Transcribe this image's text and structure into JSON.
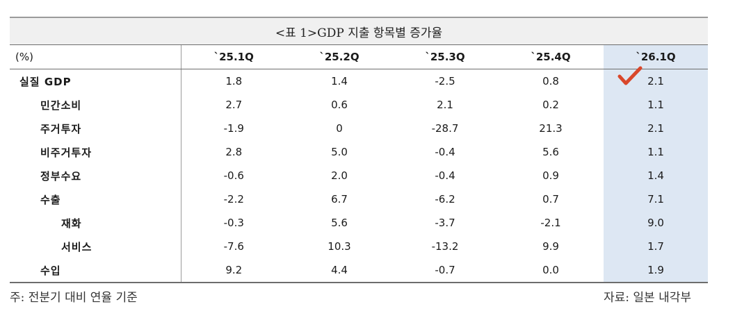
{
  "table": {
    "title": "<표 1>GDP 지출 항목별 증가율",
    "unit": "(%)",
    "columns": [
      "`25.1Q",
      "`25.2Q",
      "`25.3Q",
      "`25.4Q",
      "`26.1Q"
    ],
    "highlight_color": "#dde7f3",
    "check_color": "#d9472b",
    "rows": [
      {
        "label": "실질 GDP",
        "level": 0,
        "values": [
          "1.8",
          "1.4",
          "-2.5",
          "0.8",
          "2.1"
        ]
      },
      {
        "label": "민간소비",
        "level": 1,
        "values": [
          "2.7",
          "0.6",
          "2.1",
          "0.2",
          "1.1"
        ]
      },
      {
        "label": "주거투자",
        "level": 1,
        "values": [
          "-1.9",
          "0",
          "-28.7",
          "21.3",
          "2.1"
        ]
      },
      {
        "label": "비주거투자",
        "level": 1,
        "values": [
          "2.8",
          "5.0",
          "-0.4",
          "5.6",
          "1.1"
        ]
      },
      {
        "label": "정부수요",
        "level": 1,
        "values": [
          "-0.6",
          "2.0",
          "-0.4",
          "0.9",
          "1.4"
        ]
      },
      {
        "label": "수출",
        "level": 1,
        "values": [
          "-2.2",
          "6.7",
          "-6.2",
          "0.7",
          "7.1"
        ]
      },
      {
        "label": "재화",
        "level": 2,
        "values": [
          "-0.3",
          "5.6",
          "-3.7",
          "-2.1",
          "9.0"
        ]
      },
      {
        "label": "서비스",
        "level": 2,
        "values": [
          "-7.6",
          "10.3",
          "-13.2",
          "9.9",
          "1.7"
        ]
      },
      {
        "label": "수입",
        "level": 1,
        "values": [
          "9.2",
          "4.4",
          "-0.7",
          "0.0",
          "1.9"
        ]
      }
    ]
  },
  "footer": {
    "note": "주: 전분기 대비 연율 기준",
    "source": "자료: 일본 내각부"
  }
}
